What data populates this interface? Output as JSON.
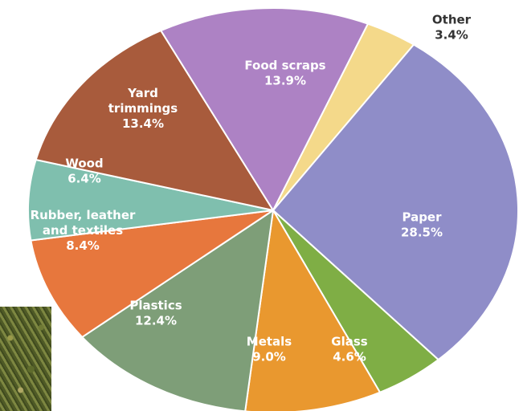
{
  "chart_data": {
    "type": "pie",
    "title": "",
    "unit": "%",
    "slices": [
      {
        "name": "Paper",
        "value": 28.5,
        "label_lines": [
          "Paper",
          "28.5%"
        ],
        "color": "#8f8dc8",
        "label_color": "#ffffff"
      },
      {
        "name": "Glass",
        "value": 4.6,
        "label_lines": [
          "Glass",
          "4.6%"
        ],
        "color": "#7fae45",
        "label_color": "#ffffff"
      },
      {
        "name": "Metals",
        "value": 9.0,
        "label_lines": [
          "Metals",
          "9.0%"
        ],
        "color": "#e9982f",
        "label_color": "#ffffff"
      },
      {
        "name": "Plastics",
        "value": 12.4,
        "label_lines": [
          "Plastics",
          "12.4%"
        ],
        "color": "#7e9e78",
        "label_color": "#ffffff"
      },
      {
        "name": "Rubber, leather and textiles",
        "value": 8.4,
        "label_lines": [
          "Rubber, leather",
          "and textiles",
          "8.4%"
        ],
        "color": "#e7773d",
        "label_color": "#ffffff"
      },
      {
        "name": "Wood",
        "value": 6.4,
        "label_lines": [
          "Wood",
          "6.4%"
        ],
        "color": "#7fbfae",
        "label_color": "#ffffff"
      },
      {
        "name": "Yard trimmings",
        "value": 13.4,
        "label_lines": [
          "Yard",
          "trimmings",
          "13.4%"
        ],
        "color": "#a85b3c",
        "label_color": "#ffffff"
      },
      {
        "name": "Food scraps",
        "value": 13.9,
        "label_lines": [
          "Food scraps",
          "13.9%"
        ],
        "color": "#ad82c4",
        "label_color": "#ffffff"
      },
      {
        "name": "Other",
        "value": 3.4,
        "label_lines": [
          "Other",
          "3.4%"
        ],
        "color": "#f4d98a",
        "label_color": "#333333"
      }
    ]
  }
}
